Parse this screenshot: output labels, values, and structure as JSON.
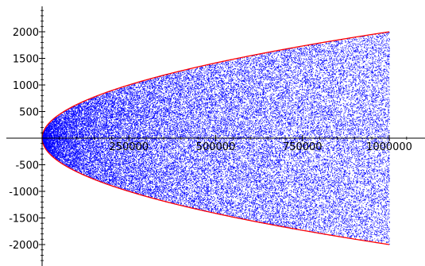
{
  "chart_data": {
    "type": "scatter",
    "title": "",
    "xlabel": "",
    "ylabel": "",
    "xlim": [
      0,
      1000000
    ],
    "ylim": [
      -2000,
      2000
    ],
    "grid": false,
    "legend": "none",
    "x_ticks": [
      {
        "value": 250000,
        "label": "250000"
      },
      {
        "value": 500000,
        "label": "500000"
      },
      {
        "value": 750000,
        "label": "750000"
      },
      {
        "value": 1000000,
        "label": "1000000"
      }
    ],
    "y_ticks": [
      {
        "value": 2000,
        "label": "2000"
      },
      {
        "value": 1500,
        "label": "1500"
      },
      {
        "value": 1000,
        "label": "1000"
      },
      {
        "value": 500,
        "label": "500"
      },
      {
        "value": -500,
        "label": "-500"
      },
      {
        "value": -1000,
        "label": "-1000"
      },
      {
        "value": -1500,
        "label": "-1500"
      },
      {
        "value": -2000,
        "label": "-2000"
      }
    ],
    "series": [
      {
        "kind": "scatter",
        "color": "#0000ff",
        "x_range": [
          0,
          1000000
        ],
        "distribution": "uniform within envelope |y| <= 2*sqrt(x)",
        "approx_point_count": 80000
      },
      {
        "kind": "line",
        "color": "#ff0000",
        "function": "2*sqrt(x)",
        "x_range": [
          0,
          1000000
        ]
      },
      {
        "kind": "line",
        "color": "#ff0000",
        "function": "-2*sqrt(x)",
        "x_range": [
          0,
          1000000
        ]
      }
    ]
  }
}
